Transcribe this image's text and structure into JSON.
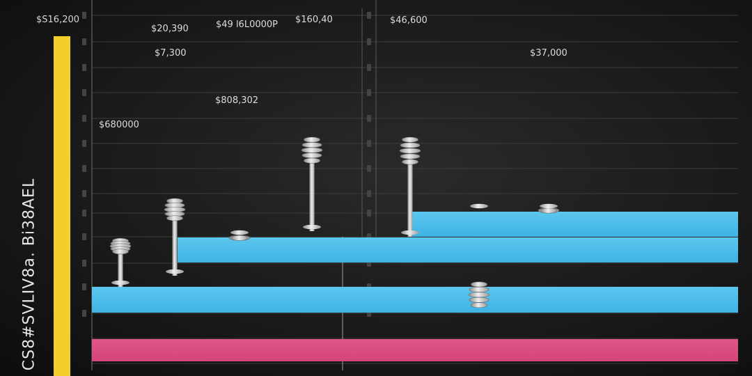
{
  "chart_data": {
    "type": "bar",
    "title": "",
    "ylabel": "CS8#SVLIV8a. Bi38AEL",
    "corner_label": "$S16,200",
    "grid": true,
    "colors": {
      "accent_bar": "#f2cf2a",
      "band_blue": "#3fb3e3",
      "band_pink": "#d4457a",
      "pin": "#c9c9c9",
      "label": "#dcdcdc"
    },
    "pins": [
      {
        "label": "$680000",
        "value": 0.43
      },
      {
        "label": "$7,300",
        "value": 0.56
      },
      {
        "label": "$20,390",
        "value": null
      },
      {
        "label": "$808,302",
        "value": 0.44
      },
      {
        "label": "$49 l6L0000P",
        "value": null
      },
      {
        "label": "$160,40",
        "value": 0.76
      },
      {
        "label": "$46,600",
        "value": 0.76
      },
      {
        "label": "",
        "value": 0.22
      },
      {
        "label": "$37,000",
        "value": 0.53
      }
    ],
    "bands": [
      "blue",
      "blue",
      "blue",
      "pink"
    ]
  }
}
